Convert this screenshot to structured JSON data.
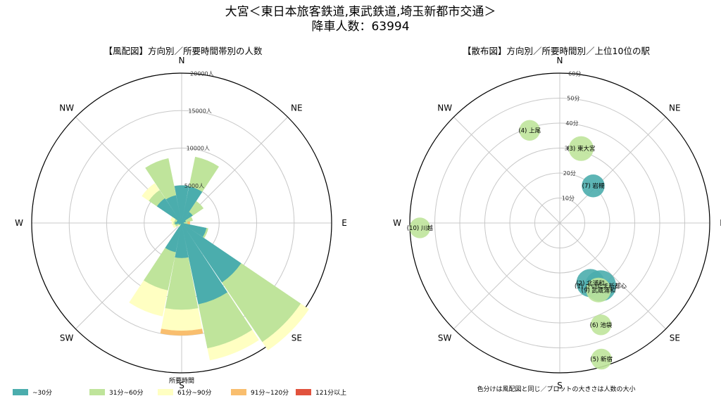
{
  "title_line1": "大宮＜東日本旅客鉄道,東武鉄道,埼玉新都市交通＞",
  "title_line2": "降車人数：63994",
  "colors": {
    "band_30": "#4badad",
    "band_60": "#bfe49b",
    "band_90": "#ffffc2",
    "band_120": "#f9be6e",
    "band_121": "#e1523d",
    "grid": "#c8c8c8",
    "frame": "#000000"
  },
  "directions": [
    "N",
    "NE",
    "E",
    "SE",
    "S",
    "SW",
    "W",
    "NW"
  ],
  "chart_data": [
    {
      "type": "polar-bar",
      "title": "【風配図】方向別／所要時間帯別の人数",
      "r_ticks": [
        "5000人",
        "10000人",
        "15000人",
        "20000人"
      ],
      "r_tick_values": [
        5000,
        10000,
        15000,
        20000
      ],
      "rlim": [
        0,
        20000
      ],
      "sectors": [
        "N",
        "NNE",
        "NE",
        "ENE",
        "E",
        "ESE",
        "SE",
        "SSE",
        "S",
        "SSW",
        "SW",
        "WSW",
        "W",
        "WNW",
        "NW",
        "NNW"
      ],
      "series": [
        {
          "name": "~30分",
          "values": [
            5000,
            5000,
            1800,
            600,
            300,
            3400,
            9600,
            11100,
            4700,
            4000,
            200,
            400,
            900,
            700,
            4000,
            3800
          ]
        },
        {
          "name": "31分~60分",
          "values": [
            0,
            4000,
            1700,
            900,
            500,
            200,
            9600,
            6000,
            6900,
            5200,
            200,
            500,
            200,
            300,
            1300,
            5000
          ]
        },
        {
          "name": "61分~90分",
          "values": [
            0,
            0,
            0,
            0,
            0,
            0,
            1300,
            1600,
            2800,
            3500,
            200,
            300,
            200,
            500,
            1100,
            0
          ]
        },
        {
          "name": "91分~120分",
          "values": [
            0,
            0,
            0,
            0,
            300,
            0,
            0,
            0,
            600,
            0,
            0,
            0,
            0,
            0,
            0,
            0
          ]
        },
        {
          "name": "121分以上",
          "values": [
            0,
            0,
            0,
            0,
            0,
            0,
            0,
            0,
            0,
            0,
            0,
            0,
            0,
            0,
            0,
            0
          ]
        }
      ]
    },
    {
      "type": "polar-scatter",
      "title": "【散布図】方向別／所要時間別／上位10位の駅",
      "r_ticks": [
        "10分",
        "20分",
        "30分",
        "40分",
        "50分",
        "60分"
      ],
      "r_tick_values": [
        10,
        20,
        30,
        40,
        50,
        60
      ],
      "rlim": [
        0,
        60
      ],
      "points": [
        {
          "label": "(1) さいたま新都心",
          "angle_deg": 147,
          "r": 30,
          "minutes_band": "~30分",
          "size": 5
        },
        {
          "label": "(2) 北浦和",
          "angle_deg": 153,
          "r": 27,
          "minutes_band": "~30分",
          "size": 4
        },
        {
          "label": "(9) 武蔵浦和",
          "angle_deg": 150,
          "r": 31,
          "minutes_band": "31分~60分",
          "size": 3
        },
        {
          "label": "(3) 東大宮",
          "angle_deg": 16,
          "r": 31,
          "minutes_band": "31分~60分",
          "size": 3
        },
        {
          "label": "(4) 上尾",
          "angle_deg": -18,
          "r": 39,
          "minutes_band": "31分~60分",
          "size": 2
        },
        {
          "label": "(5) 新宿",
          "angle_deg": 163,
          "r": 57,
          "minutes_band": "31分~60分",
          "size": 2
        },
        {
          "label": "(6) 池袋",
          "angle_deg": 158,
          "r": 44,
          "minutes_band": "31分~60分",
          "size": 2
        },
        {
          "label": "(7) 岩槻",
          "angle_deg": 42,
          "r": 20,
          "minutes_band": "~30分",
          "size": 2.5
        },
        {
          "label": "(10) 川越",
          "angle_deg": -92,
          "r": 56,
          "minutes_band": "31分~60分",
          "size": 2
        }
      ]
    }
  ],
  "legend": {
    "title": "所要時間",
    "items": [
      "~30分",
      "31分~60分",
      "61分~90分",
      "91分~120分",
      "121分以上"
    ]
  },
  "note": "色分けは風配図と同じ／プロットの大きさは人数の大小"
}
